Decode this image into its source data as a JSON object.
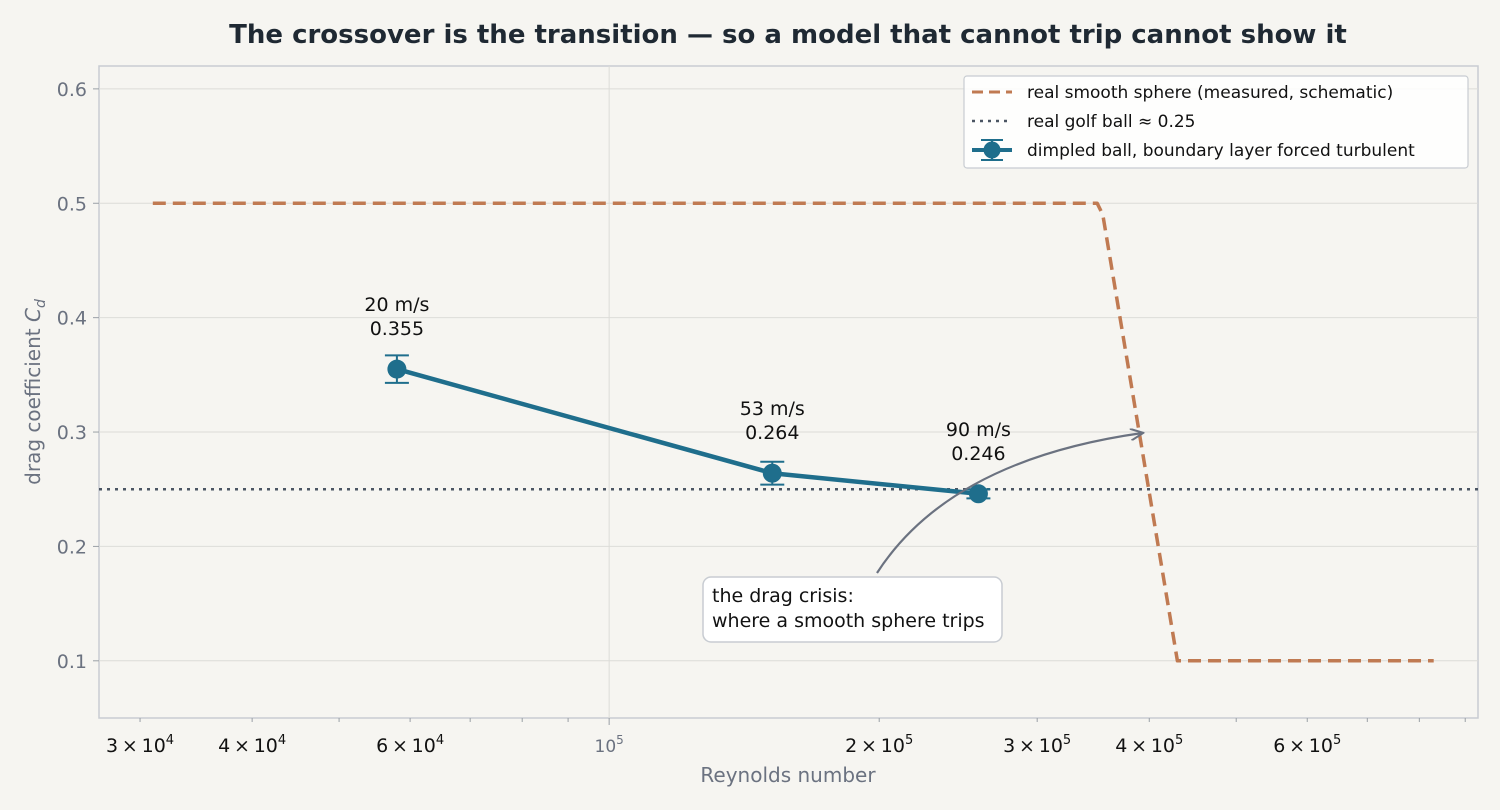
{
  "chart_data": {
    "type": "line",
    "title": "The crossover is the transition — so a model that cannot trip cannot show it",
    "xlabel": "Reynolds number",
    "ylabel": "drag coefficient",
    "ylabel_symbol_main": "C",
    "ylabel_symbol_sub": "d",
    "xscale": "log",
    "xlim": [
      27000,
      930000
    ],
    "ylim": [
      0.05,
      0.62
    ],
    "grid": true,
    "legend_position": "top-right",
    "y_ticks": [
      {
        "value": 0.1,
        "label": "0.1"
      },
      {
        "value": 0.2,
        "label": "0.2"
      },
      {
        "value": 0.3,
        "label": "0.3"
      },
      {
        "value": 0.4,
        "label": "0.4"
      },
      {
        "value": 0.5,
        "label": "0.5"
      },
      {
        "value": 0.6,
        "label": "0.6"
      }
    ],
    "x_ticks_major": [
      {
        "value": 100000,
        "base": "10",
        "exp": "5"
      }
    ],
    "x_ticks_minor_labeled": [
      {
        "value": 30000,
        "mant": "3",
        "base": "10",
        "exp": "4"
      },
      {
        "value": 40000,
        "mant": "4",
        "base": "10",
        "exp": "4"
      },
      {
        "value": 60000,
        "mant": "6",
        "base": "10",
        "exp": "4"
      },
      {
        "value": 200000,
        "mant": "2",
        "base": "10",
        "exp": "5"
      },
      {
        "value": 300000,
        "mant": "3",
        "base": "10",
        "exp": "5"
      },
      {
        "value": 400000,
        "mant": "4",
        "base": "10",
        "exp": "5"
      },
      {
        "value": 600000,
        "mant": "6",
        "base": "10",
        "exp": "5"
      }
    ],
    "x_ticks_minor_unlabeled": [
      50000,
      70000,
      80000,
      90000,
      500000,
      700000,
      800000,
      900000
    ],
    "series": [
      {
        "name": "real smooth sphere (measured, schematic)",
        "style": "dashed",
        "color": "#c07a52",
        "points": [
          [
            31000,
            0.5
          ],
          [
            350000,
            0.5
          ],
          [
            355000,
            0.49
          ],
          [
            430000,
            0.1
          ],
          [
            830000,
            0.1
          ]
        ]
      },
      {
        "name": "real golf ball ≈ 0.25",
        "style": "dotted",
        "color": "#4b5563",
        "value": 0.25
      },
      {
        "name": "dimpled ball, boundary layer forced turbulent",
        "style": "solid-markers-errorbars",
        "color": "#1f6e8c",
        "points": [
          {
            "x": 58000,
            "y": 0.355,
            "err": 0.012,
            "speed": "20 m/s",
            "value_label": "0.355"
          },
          {
            "x": 152000,
            "y": 0.264,
            "err": 0.01,
            "speed": "53 m/s",
            "value_label": "0.264"
          },
          {
            "x": 258000,
            "y": 0.246,
            "err": 0.004,
            "speed": "90 m/s",
            "value_label": "0.246"
          }
        ]
      }
    ],
    "annotation": {
      "line1": "the drag crisis:",
      "line2": "where a smooth sphere trips",
      "arrow_target": [
        390000,
        0.3
      ]
    }
  }
}
